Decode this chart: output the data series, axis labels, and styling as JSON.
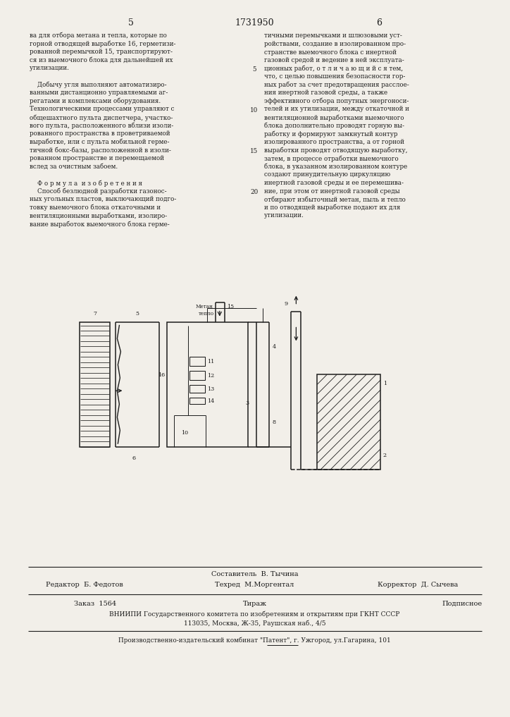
{
  "bg_color": "#f2efe9",
  "page_width": 7.07,
  "page_height": 10.0,
  "left_col_text": [
    "ва для отбора метана и тепла, которые по",
    "горной отводящей выработке 16, герметизи-",
    "рованной перемычкой 15, транспортируют-",
    "ся из выемочного блока для дальнейшей их",
    "утилизации.",
    "",
    "    Добычу угля выполняют автоматизиро-",
    "ванными дистанционно управляемыми аг-",
    "регатами и комплексами оборудования.",
    "Технологическими процессами управляют с",
    "общешахтного пульта диспетчера, участко-",
    "вого пульта, расположенного вблизи изоли-",
    "рованного пространства в проветриваемой",
    "выработке, или с пульта мобильной герме-",
    "тичной бокс-базы, расположенной в изоли-",
    "рованном пространстве и перемещаемой",
    "вслед за очистным забоем.",
    "",
    "    Ф о р м у л а  и з о б р е т е н и я",
    "    Способ безлюдной разработки газонос-",
    "ных угольных пластов, выключающий подго-",
    "товку выемочного блока откаточными и",
    "вентиляционными выработками, изолиро-",
    "вание выработок выемочного блока герме-"
  ],
  "right_col_text": [
    "тичными перемычками и шлюзовыми уст-",
    "ройствами, создание в изолированном про-",
    "странстве выемочного блока с инертной",
    "газовой средой и ведение в ней эксплуата-",
    "ционных работ, о т л и ч а ю щ и й с я тем,",
    "что, с целью повышения безопасности гор-",
    "ных работ за счет предотвращения расслое-",
    "ния инертной газовой среды, а также",
    "эффективного отбора попутных энергоноси-",
    "телей и их утилизации, между откаточной и",
    "вентиляционной выработками выемочного",
    "блока дополнительно проводят горную вы-",
    "работку и формируют замкнутый контур",
    "изолированного пространства, а от горной",
    "выработки проводят отводящую выработку,",
    "затем, в процессе отработки выемочного",
    "блока, в указанном изолированном контуре",
    "создают принудительную циркуляцию",
    "инертной газовой среды и ее перемешива-",
    "ние, при этом от инертной газовой среды",
    "отбирают избыточный метан, пыль и тепло",
    "и по отводящей выработке подают их для",
    "утилизации."
  ],
  "line_num_rows": [
    4,
    9,
    14,
    19
  ],
  "line_num_vals": [
    5,
    10,
    15,
    20
  ],
  "footer_editor": "Редактор  Б. Федотов",
  "footer_composer": "Составитель  В. Тычина",
  "footer_techred": "Техред  М.Моргентал",
  "footer_corrector": "Корректор  Д. Сычева",
  "footer_order": "Заказ  1564",
  "footer_tirazh": "Тираж",
  "footer_podpisnoe": "Подписное",
  "footer_vniipii": "ВНИИПИ Государственного комитета по изобретениям и открытиям при ГКНТ СССР",
  "footer_address": "113035, Москва, Ж-35, Раушская наб., 4/5",
  "footer_proizv": "Производственно-издательский комбинат \"Патент\", г. Ужгород, ул.Гагарина, 101"
}
